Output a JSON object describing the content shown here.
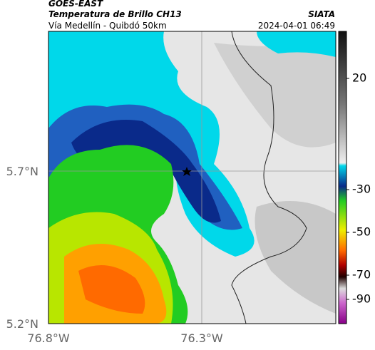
{
  "header": {
    "satellite": "GOES-EAST",
    "product": "Temperatura de Brillo CH13",
    "region": "Vía Medellín - Quibdó 50km",
    "source": "SIATA",
    "timestamp": "2024-04-01 06:49"
  },
  "axes": {
    "lat_labels": [
      "5.7°N",
      "5.2°N"
    ],
    "lon_labels": [
      "76.8°W",
      "76.3°W"
    ]
  },
  "colorbar": {
    "tick_labels": [
      "20",
      "-30",
      "-50",
      "-70",
      "-90"
    ]
  }
}
